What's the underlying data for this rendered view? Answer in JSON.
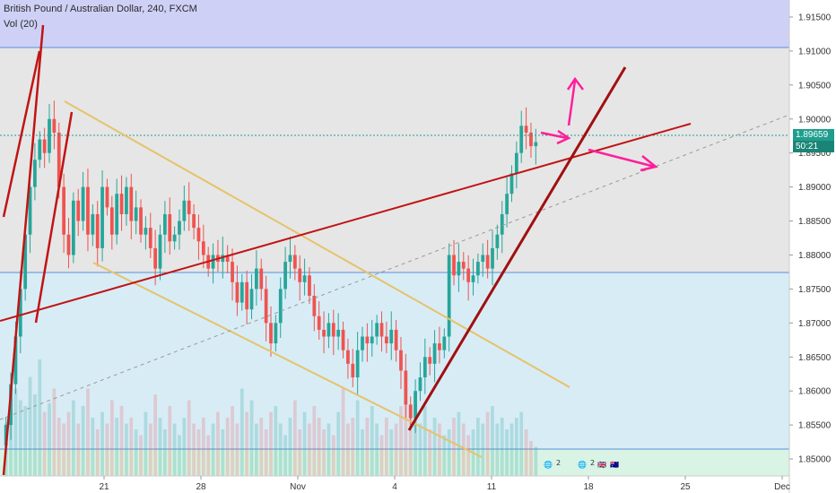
{
  "legend": {
    "symbol_line": "British Pound / Australian Dollar, 240, FXCM",
    "volume_line": "Vol (20)"
  },
  "price_tag": {
    "last_price": "1.89659",
    "countdown": "50:21"
  },
  "colors": {
    "bull": "#26a69a",
    "bear": "#ef5350",
    "trendline_red": "#c11414",
    "trendline_darkred": "#a01010",
    "channel_gold": "#e6c36a",
    "arrow_magenta": "#ff1f9b",
    "zone_purple": "#cfd0f5",
    "zone_grey": "#e6e6e6",
    "zone_blue": "#d8ecf6",
    "zone_green": "#d9f3e4"
  },
  "chart_data": {
    "type": "candlestick",
    "title": "British Pound / Australian Dollar, 240, FXCM",
    "ylim": [
      1.8475,
      1.9175
    ],
    "y_ticks": [
      "1.91500",
      "1.91000",
      "1.90500",
      "1.90000",
      "1.89500",
      "1.89000",
      "1.88500",
      "1.88000",
      "1.87500",
      "1.87000",
      "1.86500",
      "1.86000",
      "1.85500",
      "1.85000"
    ],
    "x_ticks": [
      "21",
      "28",
      "Nov",
      "4",
      "11",
      "18",
      "25",
      "Dec"
    ],
    "last_price": 1.89659,
    "zones": [
      {
        "name": "resistance-zone",
        "from": 1.9094,
        "to": 1.9175
      },
      {
        "name": "range-zone",
        "from": 1.8768,
        "to": 1.9094
      },
      {
        "name": "demand-zone",
        "from": 1.851,
        "to": 1.8768
      },
      {
        "name": "volume-zone",
        "from": 1.8475,
        "to": 1.851
      }
    ],
    "closes": [
      1.855,
      1.861,
      1.868,
      1.875,
      1.883,
      1.89,
      1.894,
      1.897,
      1.895,
      1.9,
      1.898,
      1.89,
      1.883,
      1.88,
      1.888,
      1.885,
      1.89,
      1.883,
      1.886,
      1.881,
      1.89,
      1.887,
      1.883,
      1.889,
      1.886,
      1.89,
      1.885,
      1.887,
      1.883,
      1.884,
      1.881,
      1.878,
      1.883,
      1.886,
      1.882,
      1.883,
      1.885,
      1.888,
      1.886,
      1.884,
      1.882,
      1.88,
      1.878,
      1.88,
      1.879,
      1.88,
      1.879,
      1.876,
      1.873,
      1.876,
      1.872,
      1.875,
      1.878,
      1.875,
      1.87,
      1.867,
      1.87,
      1.875,
      1.879,
      1.88,
      1.878,
      1.876,
      1.877,
      1.874,
      1.871,
      1.869,
      1.868,
      1.87,
      1.868,
      1.869,
      1.866,
      1.864,
      1.862,
      1.866,
      1.868,
      1.867,
      1.868,
      1.87,
      1.868,
      1.867,
      1.869,
      1.866,
      1.863,
      1.858,
      1.856,
      1.86,
      1.862,
      1.865,
      1.864,
      1.867,
      1.866,
      1.868,
      1.88,
      1.877,
      1.879,
      1.878,
      1.876,
      1.877,
      1.879,
      1.88,
      1.878,
      1.881,
      1.883,
      1.886,
      1.889,
      1.892,
      1.895,
      1.899,
      1.898,
      1.896,
      1.8966
    ],
    "volumes": [
      18,
      22,
      30,
      26,
      24,
      34,
      28,
      40,
      22,
      25,
      30,
      20,
      18,
      22,
      26,
      18,
      24,
      30,
      20,
      16,
      22,
      18,
      26,
      20,
      24,
      18,
      20,
      16,
      14,
      22,
      18,
      28,
      20,
      16,
      24,
      18,
      14,
      20,
      26,
      18,
      16,
      20,
      14,
      18,
      22,
      16,
      20,
      24,
      18,
      30,
      22,
      26,
      18,
      20,
      16,
      22,
      24,
      18,
      14,
      20,
      26,
      16,
      22,
      18,
      24,
      20,
      16,
      18,
      14,
      22,
      30,
      18,
      20,
      26,
      16,
      20,
      24,
      18,
      14,
      20,
      16,
      18,
      24,
      30,
      22,
      20,
      18,
      24,
      16,
      20,
      18,
      14,
      16,
      20,
      22,
      18,
      14,
      16,
      20,
      18,
      22,
      24,
      18,
      20,
      16,
      18,
      20,
      22,
      16,
      12,
      10
    ]
  }
}
